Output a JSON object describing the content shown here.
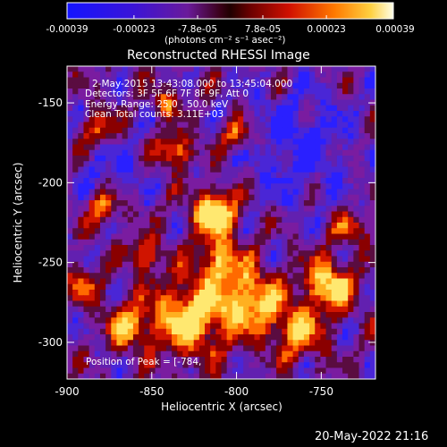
{
  "colorbar": {
    "ticks": [
      "-0.00039",
      "-0.00023",
      "-7.8e-05",
      "7.8e-05",
      "0.00023",
      "0.00039"
    ],
    "tick_values": [
      -0.00039,
      -0.00023,
      -7.8e-05,
      7.8e-05,
      0.00023,
      0.00039
    ],
    "range": [
      -0.00039,
      0.00039
    ],
    "unit_label": "(photons cm⁻² s⁻¹ asec⁻²)"
  },
  "chart_data": {
    "type": "heatmap",
    "title": "Reconstructed RHESSI Image",
    "xlabel": "Heliocentric X (arcsec)",
    "ylabel": "Heliocentric Y (arcsec)",
    "x_ticks": [
      -900,
      -850,
      -800,
      -750
    ],
    "y_ticks": [
      -150,
      -200,
      -250,
      -300
    ],
    "xlim": [
      -900,
      -718
    ],
    "ylim": [
      -323,
      -127
    ],
    "annotations": [
      "2-May-2015 13:43:08.000 to 13:45:04.000",
      "Detectors: 3F 5F 6F 7F 8F 9F, Att 0",
      "Energy Range: 25.0 - 50.0 keV",
      "Clean    Total counts: 3.11E+03"
    ],
    "peak_label": "Position of Peak = [-784,"
  },
  "footer": {
    "timestamp": "20-May-2022 21:16"
  }
}
